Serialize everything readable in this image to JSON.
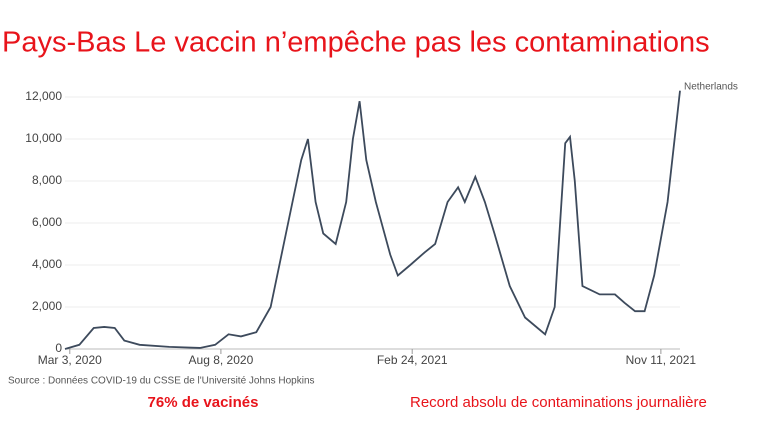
{
  "chart_data": {
    "type": "line",
    "title": "Pays-Bas Le vaccin n’empêche pas les contaminations",
    "source": "Source : Données COVID-19 du CSSE de l'Université Johns Hopkins",
    "annotations": [
      "76% de vacinés",
      "Record absolu de contaminations journalière"
    ],
    "x": [
      "2020-02-27",
      "2020-03-13",
      "2020-03-28",
      "2020-04-08",
      "2020-04-19",
      "2020-04-29",
      "2020-05-15",
      "2020-06-15",
      "2020-07-17",
      "2020-08-02",
      "2020-08-16",
      "2020-08-29",
      "2020-09-14",
      "2020-09-29",
      "2020-10-15",
      "2020-10-31",
      "2020-11-07",
      "2020-11-15",
      "2020-11-23",
      "2020-12-06",
      "2020-12-17",
      "2020-12-24",
      "2020-12-31",
      "2021-01-07",
      "2021-01-17",
      "2021-02-01",
      "2021-02-09",
      "2021-02-22",
      "2021-03-09",
      "2021-03-20",
      "2021-04-02",
      "2021-04-13",
      "2021-04-20",
      "2021-05-01",
      "2021-05-11",
      "2021-05-21",
      "2021-06-06",
      "2021-06-22",
      "2021-07-13",
      "2021-07-23",
      "2021-08-03",
      "2021-08-08",
      "2021-08-13",
      "2021-08-21",
      "2021-09-08",
      "2021-09-24",
      "2021-10-04",
      "2021-10-15",
      "2021-10-25",
      "2021-11-04",
      "2021-11-18",
      "2021-12-01"
    ],
    "series": [
      {
        "name": "Netherlands",
        "color": "#3d4a5c",
        "values": [
          0,
          200,
          1000,
          1050,
          1000,
          400,
          200,
          100,
          50,
          200,
          700,
          600,
          800,
          2000,
          5500,
          9000,
          10000,
          7000,
          5500,
          5000,
          7000,
          10000,
          11800,
          9000,
          7000,
          4500,
          3500,
          4000,
          4600,
          5000,
          7000,
          7700,
          7000,
          8200,
          7000,
          5500,
          3000,
          1500,
          700,
          2000,
          9800,
          10100,
          8000,
          3000,
          2600,
          2600,
          2200,
          1800,
          1800,
          3500,
          7000,
          12300
        ]
      }
    ],
    "xlim": [
      "2020-02-27",
      "2021-12-01"
    ],
    "xticks": [
      {
        "value": "2020-03-03",
        "label": "Mar 3, 2020"
      },
      {
        "value": "2020-08-08",
        "label": "Aug 8, 2020"
      },
      {
        "value": "2021-02-24",
        "label": "Feb 24, 2021"
      },
      {
        "value": "2021-11-11",
        "label": "Nov 11, 2021"
      }
    ],
    "ylim": [
      0,
      12000
    ],
    "yticks": [
      0,
      {
        "value": 2000,
        "label": "2,000"
      },
      {
        "value": 4000,
        "label": "4,000"
      },
      {
        "value": 6000,
        "label": "6,000"
      },
      {
        "value": 8000,
        "label": "8,000"
      },
      {
        "value": 10000,
        "label": "10,000"
      },
      {
        "value": 12000,
        "label": "12,000"
      }
    ],
    "grid": true
  }
}
